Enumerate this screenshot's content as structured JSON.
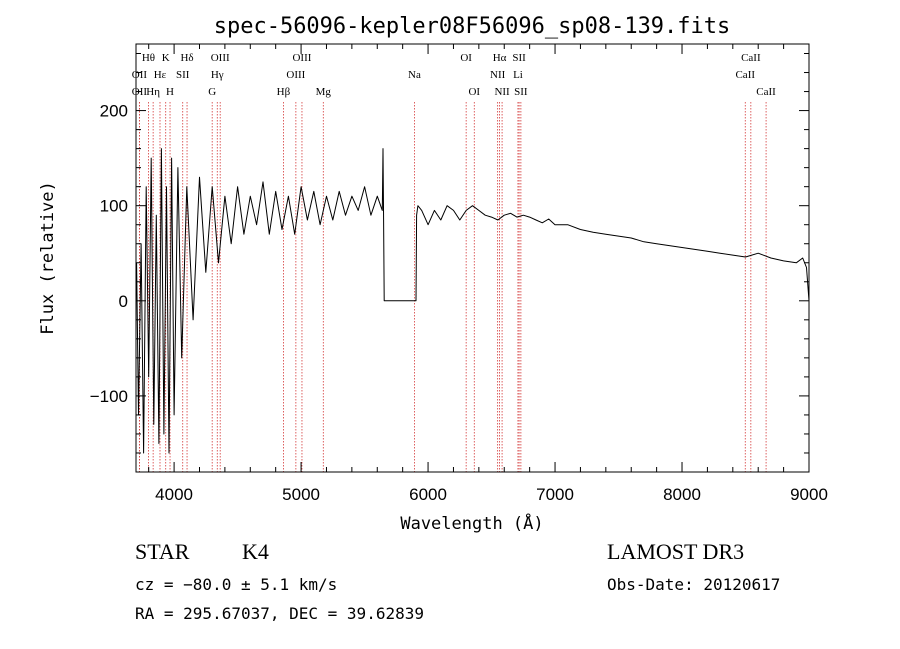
{
  "chart_data": {
    "type": "line",
    "title": "spec-56096-kepler08F56096_sp08-139.fits",
    "xlabel": "Wavelength (Å)",
    "ylabel": "Flux (relative)",
    "xlim": [
      3700,
      9000
    ],
    "ylim": [
      -180,
      270
    ],
    "x_ticks": [
      4000,
      5000,
      6000,
      7000,
      8000,
      9000
    ],
    "y_ticks": [
      -100,
      0,
      100,
      200
    ],
    "series": [
      {
        "name": "flux",
        "x": [
          3705,
          3720,
          3740,
          3760,
          3780,
          3800,
          3820,
          3840,
          3860,
          3880,
          3900,
          3920,
          3940,
          3960,
          3980,
          4000,
          4030,
          4060,
          4100,
          4150,
          4200,
          4250,
          4300,
          4350,
          4400,
          4450,
          4500,
          4550,
          4600,
          4650,
          4700,
          4750,
          4800,
          4850,
          4900,
          4950,
          5000,
          5050,
          5100,
          5150,
          5200,
          5250,
          5300,
          5350,
          5400,
          5450,
          5500,
          5550,
          5600,
          5640,
          5645,
          5650,
          5655,
          5900,
          5905,
          5910,
          5920,
          5950,
          6000,
          6050,
          6100,
          6150,
          6200,
          6250,
          6300,
          6350,
          6400,
          6450,
          6500,
          6550,
          6600,
          6650,
          6700,
          6750,
          6800,
          6850,
          6900,
          6950,
          7000,
          7100,
          7200,
          7300,
          7400,
          7500,
          7600,
          7700,
          7800,
          7900,
          8000,
          8100,
          8200,
          8300,
          8400,
          8500,
          8600,
          8700,
          8800,
          8900,
          8950,
          8980,
          9000
        ],
        "y": [
          40,
          -120,
          60,
          -160,
          120,
          -80,
          150,
          -130,
          90,
          -150,
          160,
          -140,
          120,
          -160,
          150,
          -120,
          140,
          -60,
          120,
          -20,
          130,
          30,
          120,
          40,
          110,
          60,
          120,
          70,
          110,
          80,
          125,
          70,
          115,
          75,
          110,
          70,
          120,
          85,
          115,
          80,
          110,
          85,
          115,
          90,
          110,
          95,
          120,
          90,
          110,
          95,
          160,
          85,
          0,
          0,
          0,
          90,
          100,
          95,
          80,
          95,
          85,
          100,
          95,
          85,
          95,
          100,
          95,
          90,
          88,
          85,
          90,
          92,
          88,
          90,
          88,
          85,
          82,
          86,
          80,
          80,
          75,
          72,
          70,
          68,
          66,
          62,
          60,
          58,
          56,
          54,
          52,
          50,
          48,
          46,
          50,
          45,
          42,
          40,
          45,
          35,
          0
        ]
      }
    ],
    "line_markers": [
      {
        "label": "Hθ",
        "wavelength": 3798,
        "row": 1,
        "color": "#d43a3a"
      },
      {
        "label": "K",
        "wavelength": 3934,
        "row": 1,
        "color": "#d43a3a"
      },
      {
        "label": "Hδ",
        "wavelength": 4102,
        "row": 1,
        "color": "#d43a3a"
      },
      {
        "label": "OIII",
        "wavelength": 4363,
        "row": 1,
        "color": "#d43a3a"
      },
      {
        "label": "OIII",
        "wavelength": 5007,
        "row": 1,
        "color": "#d43a3a"
      },
      {
        "label": "OI",
        "wavelength": 6300,
        "row": 1,
        "color": "#d43a3a"
      },
      {
        "label": "Hα",
        "wavelength": 6563,
        "row": 1,
        "color": "#d43a3a"
      },
      {
        "label": "SII",
        "wavelength": 6717,
        "row": 1,
        "color": "#d43a3a"
      },
      {
        "label": "CaII",
        "wavelength": 8542,
        "row": 1,
        "color": "#d43a3a"
      },
      {
        "label": "OII",
        "wavelength": 3727,
        "row": 2,
        "color": "#d43a3a"
      },
      {
        "label": "Hε",
        "wavelength": 3889,
        "row": 2,
        "color": "#d43a3a"
      },
      {
        "label": "SII",
        "wavelength": 4068,
        "row": 2,
        "color": "#d43a3a"
      },
      {
        "label": "Hγ",
        "wavelength": 4340,
        "row": 2,
        "color": "#d43a3a"
      },
      {
        "label": "OIII",
        "wavelength": 4959,
        "row": 2,
        "color": "#d43a3a"
      },
      {
        "label": "NII",
        "wavelength": 6548,
        "row": 2,
        "color": "#d43a3a"
      },
      {
        "label": "Li",
        "wavelength": 6708,
        "row": 2,
        "color": "#d43a3a"
      },
      {
        "label": "CaII",
        "wavelength": 8498,
        "row": 2,
        "color": "#d43a3a"
      },
      {
        "label": "OII",
        "wavelength": 3727,
        "row": 3,
        "color": "#d43a3a"
      },
      {
        "label": "Hη",
        "wavelength": 3835,
        "row": 3,
        "color": "#d43a3a"
      },
      {
        "label": "H",
        "wavelength": 3968,
        "row": 3,
        "color": "#d43a3a"
      },
      {
        "label": "G",
        "wavelength": 4300,
        "row": 3,
        "color": "#d43a3a"
      },
      {
        "label": "Hβ",
        "wavelength": 4861,
        "row": 3,
        "color": "#d43a3a"
      },
      {
        "label": "Mg",
        "wavelength": 5175,
        "row": 3,
        "color": "#d43a3a"
      },
      {
        "label": "Na",
        "wavelength": 5893,
        "row": 2,
        "color": "#d43a3a"
      },
      {
        "label": "OI",
        "wavelength": 6364,
        "row": 3,
        "color": "#d43a3a"
      },
      {
        "label": "NII",
        "wavelength": 6583,
        "row": 3,
        "color": "#d43a3a"
      },
      {
        "label": "SII",
        "wavelength": 6731,
        "row": 3,
        "color": "#d43a3a"
      },
      {
        "label": "CaII",
        "wavelength": 8662,
        "row": 3,
        "color": "#d43a3a"
      }
    ],
    "legend": "none",
    "grid": false
  },
  "info": {
    "object_class": "STAR",
    "subclass": "K4",
    "survey": "LAMOST DR3",
    "cz": "cz = −80.0 ± 5.1 km/s",
    "obs_date": "Obs-Date: 20120617",
    "coords": "RA = 295.67037, DEC =  39.62839"
  }
}
